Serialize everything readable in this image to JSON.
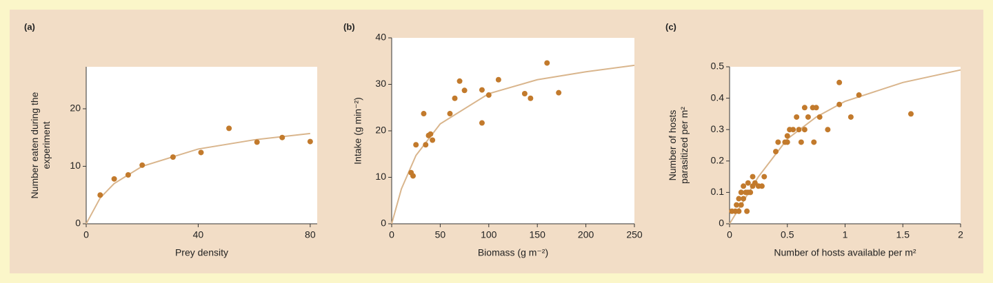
{
  "chart_data": [
    {
      "type": "scatter",
      "panel": "(a)",
      "xlabel": "Prey density",
      "ylabel": [
        "Number eaten during the",
        "experiment"
      ],
      "xlim": [
        0,
        82.5
      ],
      "ylim": [
        0,
        27.3
      ],
      "xticks": [
        0,
        40,
        80
      ],
      "yticks": [
        0,
        10,
        20
      ],
      "color": "#c27a2c",
      "x": [
        5,
        10,
        15,
        20,
        31,
        41,
        51,
        61,
        70,
        80
      ],
      "values": [
        5,
        7.8,
        8.5,
        10.2,
        11.6,
        12.4,
        16.6,
        14.2,
        15,
        14.3
      ],
      "fit": {
        "color": "#d9b58c",
        "x": [
          0,
          5,
          10,
          20,
          40,
          60,
          80
        ],
        "values": [
          0,
          4.5,
          7,
          10,
          13,
          14.6,
          15.7
        ]
      }
    },
    {
      "type": "scatter",
      "panel": "(b)",
      "xlabel": "Biomass (g m⁻²)",
      "ylabel": [
        "Intake (g min⁻²)"
      ],
      "xlim": [
        0,
        250
      ],
      "ylim": [
        0,
        40
      ],
      "xticks": [
        0,
        50,
        100,
        150,
        200,
        250
      ],
      "yticks": [
        0,
        10,
        20,
        30,
        40
      ],
      "color": "#c27a2c",
      "x": [
        20,
        22,
        25,
        33,
        35,
        38,
        40,
        42,
        60,
        65,
        70,
        75,
        93,
        93,
        100,
        110,
        137,
        143,
        160,
        172
      ],
      "values": [
        11,
        10.3,
        17,
        23.7,
        17,
        19,
        19.3,
        18,
        23.7,
        27,
        30.7,
        28.7,
        28.8,
        21.7,
        27.7,
        31,
        28,
        27,
        34.6,
        28.2
      ],
      "fit": {
        "color": "#d9b58c",
        "x": [
          0,
          10,
          25,
          50,
          100,
          150,
          200,
          250
        ],
        "values": [
          0,
          7.5,
          14.7,
          21.5,
          28,
          31,
          32.7,
          34.1
        ]
      }
    },
    {
      "type": "scatter",
      "panel": "(c)",
      "xlabel": "Number of hosts available per m²",
      "ylabel": [
        "Number of hosts",
        "parasitized per m²"
      ],
      "xlim": [
        0,
        2
      ],
      "ylim": [
        0,
        0.5
      ],
      "xticks": [
        0,
        0.5,
        1,
        1.5,
        2
      ],
      "yticks": [
        0,
        0.1,
        0.2,
        0.3,
        0.4,
        0.5
      ],
      "color": "#c27a2c",
      "x": [
        0.02,
        0.05,
        0.08,
        0.06,
        0.1,
        0.08,
        0.12,
        0.1,
        0.14,
        0.16,
        0.18,
        0.12,
        0.16,
        0.2,
        0.22,
        0.15,
        0.2,
        0.25,
        0.3,
        0.28,
        0.4,
        0.42,
        0.48,
        0.5,
        0.52,
        0.5,
        0.55,
        0.58,
        0.6,
        0.62,
        0.65,
        0.68,
        0.65,
        0.72,
        0.75,
        0.73,
        0.78,
        0.85,
        0.95,
        0.95,
        1.05,
        1.12,
        1.57
      ],
      "values": [
        0.04,
        0.04,
        0.04,
        0.06,
        0.06,
        0.08,
        0.08,
        0.1,
        0.1,
        0.1,
        0.1,
        0.12,
        0.13,
        0.12,
        0.13,
        0.04,
        0.15,
        0.12,
        0.15,
        0.12,
        0.23,
        0.26,
        0.26,
        0.28,
        0.3,
        0.26,
        0.3,
        0.34,
        0.3,
        0.26,
        0.3,
        0.34,
        0.37,
        0.37,
        0.37,
        0.26,
        0.34,
        0.3,
        0.45,
        0.38,
        0.34,
        0.41,
        0.35
      ],
      "fit": {
        "color": "#d9b58c",
        "x": [
          0,
          0.1,
          0.25,
          0.5,
          0.75,
          1,
          1.5,
          2
        ],
        "values": [
          0,
          0.06,
          0.15,
          0.27,
          0.34,
          0.39,
          0.45,
          0.49
        ]
      }
    }
  ]
}
